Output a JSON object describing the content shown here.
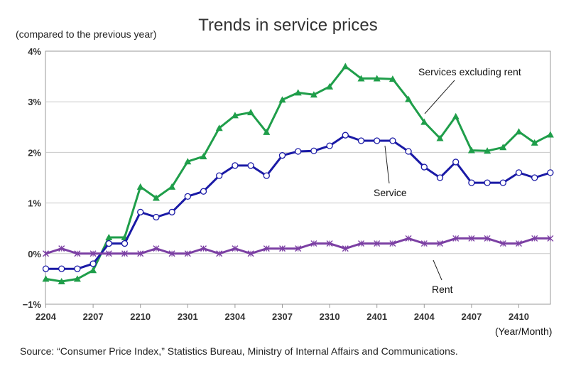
{
  "page": {
    "title": "Trends in service prices",
    "unit_note": "(compared to the previous year)",
    "source": "Source: “Consumer Price Index,” Statistics Bureau, Ministry of Internal Affairs and Communications."
  },
  "chart_data": {
    "type": "line",
    "title": "Trends in service prices",
    "xlabel": "(Year/Month)",
    "ylabel": "(compared to the previous year)",
    "ylim": [
      -1,
      4
    ],
    "yticks": [
      -1,
      0,
      1,
      2,
      3,
      4
    ],
    "ytick_labels": [
      "−1%",
      "0%",
      "1%",
      "2%",
      "3%",
      "4%"
    ],
    "grid": true,
    "x": [
      "2204",
      "2205",
      "2206",
      "2207",
      "2208",
      "2209",
      "2210",
      "2211",
      "2212",
      "2301",
      "2302",
      "2303",
      "2304",
      "2305",
      "2306",
      "2307",
      "2308",
      "2309",
      "2310",
      "2311",
      "2312",
      "2401",
      "2402",
      "2403",
      "2404",
      "2405",
      "2406",
      "2407",
      "2408",
      "2409",
      "2410",
      "2411",
      "2412"
    ],
    "x_tick_labels": [
      "2204",
      "2207",
      "2210",
      "2301",
      "2304",
      "2307",
      "2310",
      "2401",
      "2404",
      "2407",
      "2410"
    ],
    "series": [
      {
        "name": "Services excluding rent",
        "color": "#1f9e4a",
        "marker": "triangle",
        "values": [
          -0.5,
          -0.55,
          -0.5,
          -0.33,
          0.32,
          0.32,
          1.32,
          1.1,
          1.32,
          1.82,
          1.92,
          2.48,
          2.73,
          2.79,
          2.4,
          3.04,
          3.18,
          3.14,
          3.3,
          3.7,
          3.46,
          3.46,
          3.45,
          3.05,
          2.6,
          2.28,
          2.71,
          2.04,
          2.03,
          2.1,
          2.41,
          2.19,
          2.35
        ]
      },
      {
        "name": "Service",
        "color": "#1a1aa6",
        "marker": "circle",
        "values": [
          -0.3,
          -0.3,
          -0.3,
          -0.2,
          0.2,
          0.2,
          0.82,
          0.72,
          0.82,
          1.13,
          1.23,
          1.54,
          1.74,
          1.74,
          1.54,
          1.94,
          2.02,
          2.03,
          2.13,
          2.34,
          2.23,
          2.23,
          2.23,
          2.02,
          1.71,
          1.5,
          1.81,
          1.4,
          1.4,
          1.4,
          1.6,
          1.5,
          1.6
        ]
      },
      {
        "name": "Rent",
        "color": "#7b3fa3",
        "marker": "x",
        "values": [
          0.0,
          0.1,
          0.0,
          0.0,
          0.0,
          0.0,
          0.0,
          0.1,
          0.0,
          0.0,
          0.1,
          0.0,
          0.1,
          0.0,
          0.1,
          0.1,
          0.1,
          0.2,
          0.2,
          0.1,
          0.2,
          0.2,
          0.2,
          0.3,
          0.2,
          0.2,
          0.3,
          0.3,
          0.3,
          0.2,
          0.2,
          0.3,
          0.3
        ]
      }
    ]
  }
}
